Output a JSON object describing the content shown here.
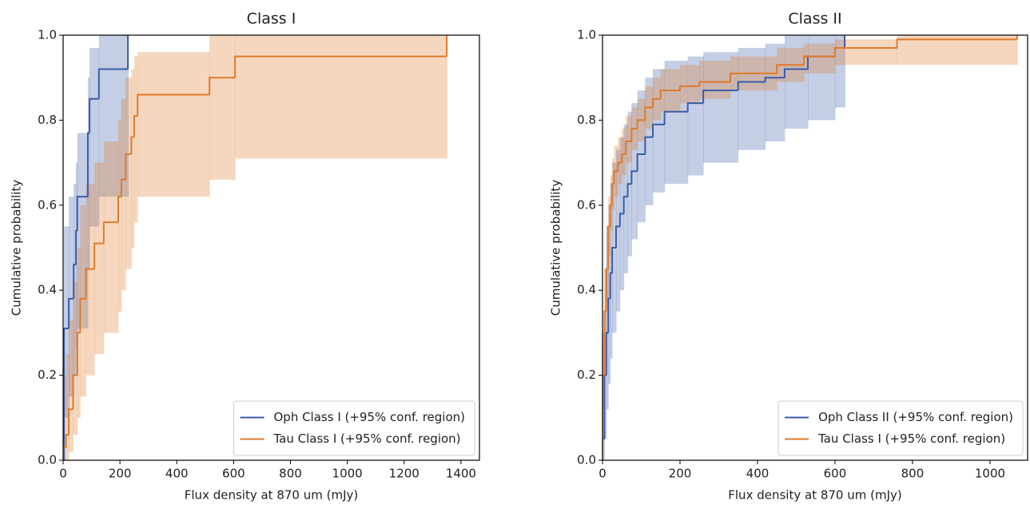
{
  "chart_data": [
    {
      "type": "step-band",
      "title": "Class I",
      "xlabel": "Flux density at 870 um (mJy)",
      "ylabel": "Cumulative probability",
      "xlim": [
        0,
        1465
      ],
      "ylim": [
        0,
        1
      ],
      "xticks": [
        0,
        200,
        400,
        600,
        800,
        1000,
        1200,
        1400
      ],
      "yticks": [
        {
          "value": 0,
          "label": "0.0"
        },
        {
          "value": 0.2,
          "label": "0.2"
        },
        {
          "value": 0.4,
          "label": "0.4"
        },
        {
          "value": 0.6,
          "label": "0.6"
        },
        {
          "value": 0.8,
          "label": "0.8"
        },
        {
          "value": 1,
          "label": "1.0"
        }
      ],
      "legend": "lower right",
      "series": [
        {
          "name": "Oph Class I (+95% conf. region)",
          "color": "#3a5ca8",
          "x": [
            3,
            20,
            37,
            45,
            50,
            87,
            93,
            126,
            228
          ],
          "values": [
            0.31,
            0.38,
            0.46,
            0.54,
            0.62,
            0.77,
            0.85,
            0.92,
            1.0
          ],
          "lower": [
            0.1,
            0.15,
            0.2,
            0.26,
            0.31,
            0.45,
            0.55,
            0.62,
            0.62
          ],
          "upper": [
            0.55,
            0.62,
            0.65,
            0.7,
            0.77,
            0.9,
            0.97,
            1.0,
            1.0
          ]
        },
        {
          "name": "Tau Class I (+95% conf. region)",
          "color": "#df7a2a",
          "x": [
            0,
            10,
            20,
            35,
            50,
            60,
            80,
            110,
            143,
            194,
            205,
            220,
            240,
            250,
            262,
            515,
            605,
            1350
          ],
          "values": [
            0.03,
            0.06,
            0.12,
            0.2,
            0.3,
            0.38,
            0.45,
            0.51,
            0.56,
            0.62,
            0.66,
            0.72,
            0.76,
            0.81,
            0.86,
            0.9,
            0.95,
            1.0
          ],
          "lower": [
            0,
            0,
            0.02,
            0.06,
            0.1,
            0.15,
            0.2,
            0.25,
            0.3,
            0.35,
            0.4,
            0.45,
            0.5,
            0.56,
            0.62,
            0.66,
            0.71,
            0.71
          ],
          "upper": [
            0.2,
            0.25,
            0.33,
            0.42,
            0.5,
            0.6,
            0.65,
            0.7,
            0.75,
            0.8,
            0.85,
            0.9,
            0.92,
            0.95,
            0.96,
            1.0,
            1.0,
            1.0
          ]
        }
      ]
    },
    {
      "type": "step-band",
      "title": "Class II",
      "xlabel": "Flux density at 870 um (mJy)",
      "ylabel": "Cumulative probability",
      "xlim": [
        0,
        1097
      ],
      "ylim": [
        0,
        1
      ],
      "xticks": [
        0,
        200,
        400,
        600,
        800,
        1000
      ],
      "yticks": [
        {
          "value": 0,
          "label": "0.0"
        },
        {
          "value": 0.2,
          "label": "0.2"
        },
        {
          "value": 0.4,
          "label": "0.4"
        },
        {
          "value": 0.6,
          "label": "0.6"
        },
        {
          "value": 0.8,
          "label": "0.8"
        },
        {
          "value": 1,
          "label": "1.0"
        }
      ],
      "legend": "lower right",
      "series": [
        {
          "name": "Oph Class II (+95% conf. region)",
          "color": "#3a5ca8",
          "x": [
            0,
            5,
            10,
            15,
            20,
            25,
            35,
            45,
            55,
            65,
            75,
            90,
            110,
            130,
            160,
            220,
            260,
            350,
            420,
            470,
            530,
            600,
            625
          ],
          "values": [
            0.05,
            0.2,
            0.3,
            0.38,
            0.44,
            0.5,
            0.55,
            0.58,
            0.62,
            0.65,
            0.68,
            0.72,
            0.76,
            0.79,
            0.82,
            0.84,
            0.87,
            0.89,
            0.9,
            0.92,
            0.95,
            0.97,
            1.0
          ],
          "lower": [
            0,
            0.05,
            0.12,
            0.18,
            0.24,
            0.3,
            0.35,
            0.4,
            0.44,
            0.48,
            0.52,
            0.56,
            0.6,
            0.63,
            0.65,
            0.67,
            0.7,
            0.73,
            0.75,
            0.78,
            0.8,
            0.83,
            0.83
          ],
          "upper": [
            0.3,
            0.45,
            0.55,
            0.6,
            0.65,
            0.7,
            0.73,
            0.76,
            0.79,
            0.82,
            0.84,
            0.87,
            0.9,
            0.92,
            0.94,
            0.95,
            0.96,
            0.97,
            0.98,
            1.0,
            1.0,
            1.0,
            1.0
          ]
        },
        {
          "name": "Tau Class I (+95% conf. region)",
          "color": "#df7a2a",
          "x": [
            0,
            5,
            10,
            15,
            20,
            25,
            30,
            40,
            50,
            60,
            75,
            90,
            110,
            130,
            150,
            200,
            250,
            330,
            450,
            520,
            600,
            760,
            1070
          ],
          "values": [
            0.2,
            0.35,
            0.45,
            0.55,
            0.6,
            0.65,
            0.68,
            0.7,
            0.72,
            0.75,
            0.78,
            0.8,
            0.83,
            0.85,
            0.87,
            0.88,
            0.89,
            0.91,
            0.93,
            0.95,
            0.97,
            0.99,
            1.0
          ],
          "lower": [
            0.12,
            0.28,
            0.38,
            0.48,
            0.54,
            0.59,
            0.62,
            0.65,
            0.67,
            0.7,
            0.73,
            0.75,
            0.78,
            0.8,
            0.82,
            0.84,
            0.85,
            0.87,
            0.89,
            0.91,
            0.93,
            0.93,
            0.93
          ],
          "upper": [
            0.3,
            0.45,
            0.55,
            0.62,
            0.67,
            0.71,
            0.74,
            0.76,
            0.78,
            0.81,
            0.83,
            0.85,
            0.88,
            0.9,
            0.92,
            0.93,
            0.94,
            0.95,
            0.97,
            0.98,
            0.99,
            1.0,
            1.0
          ]
        }
      ]
    }
  ]
}
